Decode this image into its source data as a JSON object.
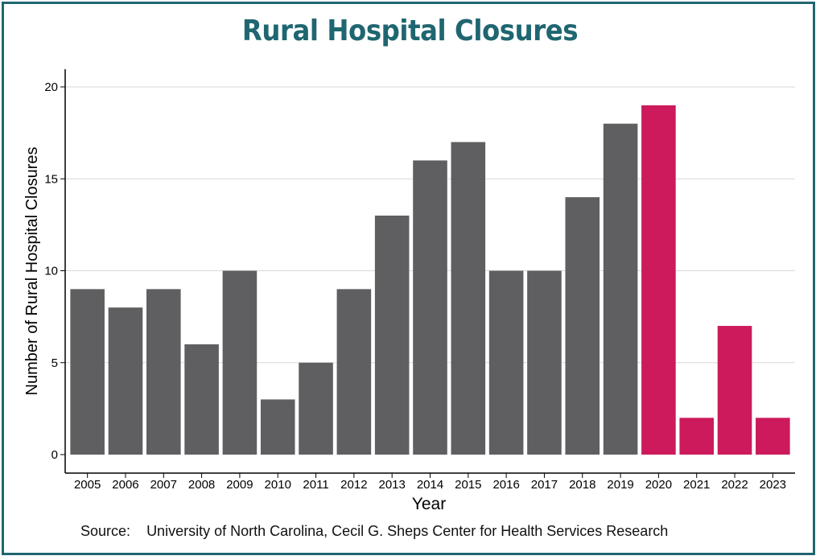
{
  "title": "Rural Hospital Closures",
  "source_label": "Source:",
  "source_text": "University of North Carolina, Cecil G. Sheps Center for Health Services Research",
  "colors": {
    "frame": "#1f6670",
    "title": "#1f6670",
    "bar_default": "#5f5f61",
    "bar_highlight": "#cc1a5c",
    "grid": "#d9d9d9"
  },
  "chart_data": {
    "type": "bar",
    "title": "Rural Hospital Closures",
    "xlabel": "Year",
    "ylabel": "Number of Rural Hospital Closures",
    "categories": [
      "2005",
      "2006",
      "2007",
      "2008",
      "2009",
      "2010",
      "2011",
      "2012",
      "2013",
      "2014",
      "2015",
      "2016",
      "2017",
      "2018",
      "2019",
      "2020",
      "2021",
      "2022",
      "2023"
    ],
    "values": [
      9,
      8,
      9,
      6,
      10,
      3,
      5,
      9,
      13,
      16,
      17,
      10,
      10,
      14,
      18,
      19,
      2,
      7,
      2
    ],
    "highlight_categories": [
      "2020",
      "2021",
      "2022",
      "2023"
    ],
    "ylim": [
      0,
      20
    ],
    "yticks": [
      0,
      5,
      10,
      15,
      20
    ],
    "grid": true
  }
}
